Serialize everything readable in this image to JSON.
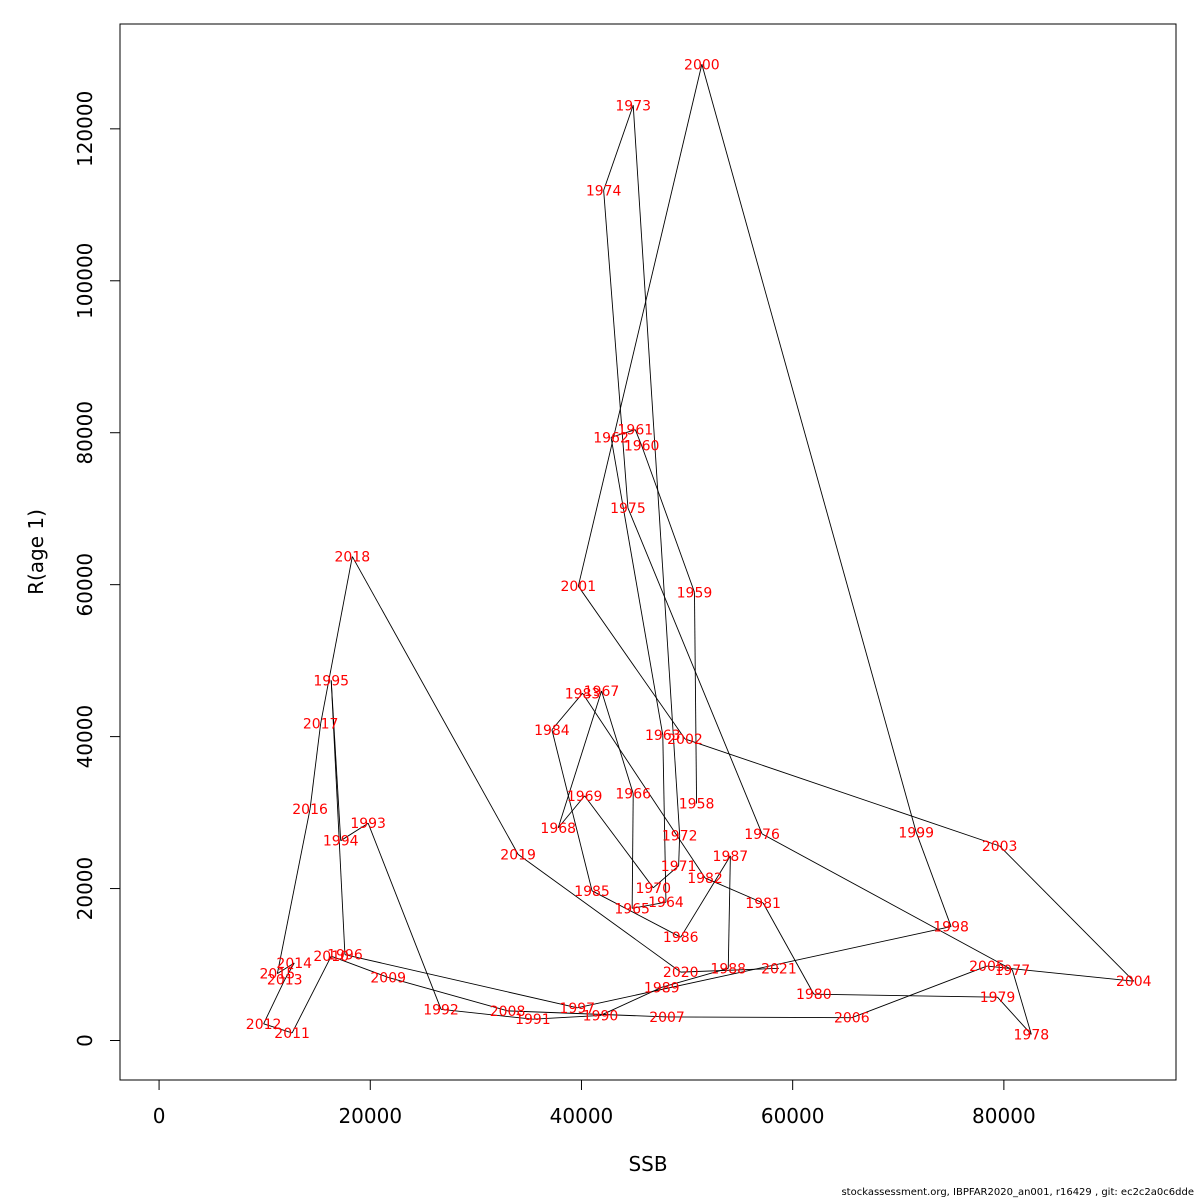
{
  "footer": "stockassessment.org, IBPFAR2020_an001, r16429 , git: ec2c2a0c6dde",
  "chart_data": {
    "type": "line",
    "title": "",
    "xlabel": "SSB",
    "ylabel": "R(age 1)",
    "xlim": [
      -3700,
      96300
    ],
    "ylim": [
      -5200,
      133800
    ],
    "xticks": [
      0,
      20000,
      40000,
      60000,
      80000
    ],
    "yticks": [
      0,
      20000,
      40000,
      60000,
      80000,
      100000,
      120000
    ],
    "grid": false,
    "line_color": "#000000",
    "label_color": "#ff0000",
    "points": [
      {
        "year": "1958",
        "x": 50900,
        "y": 31200
      },
      {
        "year": "1959",
        "x": 50700,
        "y": 59000
      },
      {
        "year": "1960",
        "x": 45700,
        "y": 78300
      },
      {
        "year": "1961",
        "x": 45100,
        "y": 80400
      },
      {
        "year": "1962",
        "x": 42800,
        "y": 79400
      },
      {
        "year": "1963",
        "x": 47700,
        "y": 40200
      },
      {
        "year": "1964",
        "x": 48000,
        "y": 18200
      },
      {
        "year": "1965",
        "x": 44800,
        "y": 17400
      },
      {
        "year": "1966",
        "x": 44900,
        "y": 32500
      },
      {
        "year": "1967",
        "x": 41900,
        "y": 46000
      },
      {
        "year": "1968",
        "x": 37800,
        "y": 28000
      },
      {
        "year": "1969",
        "x": 40300,
        "y": 32200
      },
      {
        "year": "1970",
        "x": 46800,
        "y": 20100
      },
      {
        "year": "1971",
        "x": 49200,
        "y": 23000
      },
      {
        "year": "1972",
        "x": 49300,
        "y": 27000
      },
      {
        "year": "1973",
        "x": 44900,
        "y": 123100
      },
      {
        "year": "1974",
        "x": 42100,
        "y": 111900
      },
      {
        "year": "1975",
        "x": 44400,
        "y": 70100
      },
      {
        "year": "1976",
        "x": 57100,
        "y": 27200
      },
      {
        "year": "1977",
        "x": 80800,
        "y": 9300
      },
      {
        "year": "1978",
        "x": 82600,
        "y": 800
      },
      {
        "year": "1979",
        "x": 79400,
        "y": 5700
      },
      {
        "year": "1980",
        "x": 62000,
        "y": 6100
      },
      {
        "year": "1981",
        "x": 57200,
        "y": 18100
      },
      {
        "year": "1982",
        "x": 51700,
        "y": 21400
      },
      {
        "year": "1983",
        "x": 40100,
        "y": 45700
      },
      {
        "year": "1984",
        "x": 37200,
        "y": 40900
      },
      {
        "year": "1985",
        "x": 41000,
        "y": 19700
      },
      {
        "year": "1986",
        "x": 49400,
        "y": 13600
      },
      {
        "year": "1987",
        "x": 54100,
        "y": 24300
      },
      {
        "year": "1988",
        "x": 53900,
        "y": 9500
      },
      {
        "year": "1989",
        "x": 47600,
        "y": 7000
      },
      {
        "year": "1990",
        "x": 41800,
        "y": 3300
      },
      {
        "year": "1991",
        "x": 35400,
        "y": 2800
      },
      {
        "year": "1992",
        "x": 26700,
        "y": 4100
      },
      {
        "year": "1993",
        "x": 19800,
        "y": 28600
      },
      {
        "year": "1994",
        "x": 17200,
        "y": 26300
      },
      {
        "year": "1995",
        "x": 16300,
        "y": 47400
      },
      {
        "year": "1996",
        "x": 17600,
        "y": 11300
      },
      {
        "year": "1997",
        "x": 39600,
        "y": 4300
      },
      {
        "year": "1998",
        "x": 75000,
        "y": 15000
      },
      {
        "year": "1999",
        "x": 71700,
        "y": 27400
      },
      {
        "year": "2000",
        "x": 51400,
        "y": 128500
      },
      {
        "year": "2001",
        "x": 39700,
        "y": 59800
      },
      {
        "year": "2002",
        "x": 49800,
        "y": 39700
      },
      {
        "year": "2003",
        "x": 79600,
        "y": 25600
      },
      {
        "year": "2004",
        "x": 92300,
        "y": 7800
      },
      {
        "year": "2005",
        "x": 78400,
        "y": 9800
      },
      {
        "year": "2006",
        "x": 65600,
        "y": 3000
      },
      {
        "year": "2007",
        "x": 48100,
        "y": 3100
      },
      {
        "year": "2008",
        "x": 33000,
        "y": 3900
      },
      {
        "year": "2009",
        "x": 21700,
        "y": 8300
      },
      {
        "year": "2010",
        "x": 16300,
        "y": 11100
      },
      {
        "year": "2011",
        "x": 12600,
        "y": 1000
      },
      {
        "year": "2012",
        "x": 9900,
        "y": 2200
      },
      {
        "year": "2013",
        "x": 11900,
        "y": 8000
      },
      {
        "year": "2014",
        "x": 12800,
        "y": 10200
      },
      {
        "year": "2015",
        "x": 11200,
        "y": 8800
      },
      {
        "year": "2016",
        "x": 14300,
        "y": 30500
      },
      {
        "year": "2017",
        "x": 15300,
        "y": 41700
      },
      {
        "year": "2018",
        "x": 18300,
        "y": 63700
      },
      {
        "year": "2019",
        "x": 34000,
        "y": 24500
      },
      {
        "year": "2020",
        "x": 49400,
        "y": 9000
      },
      {
        "year": "2021",
        "x": 58700,
        "y": 9500
      }
    ]
  }
}
